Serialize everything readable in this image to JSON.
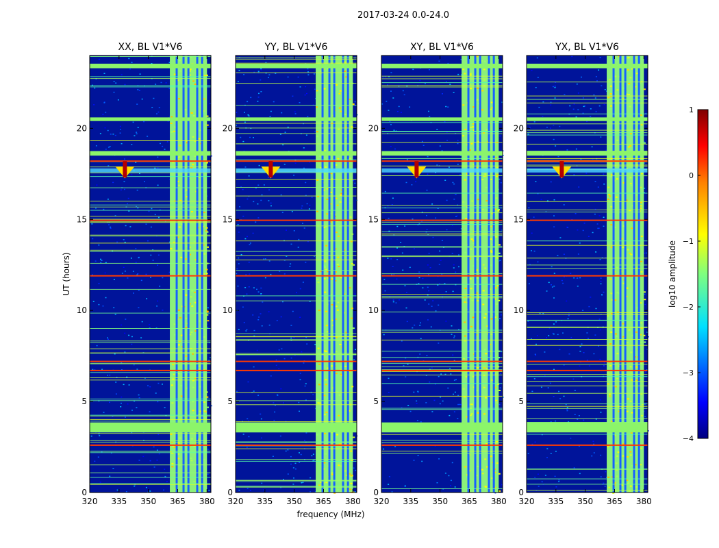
{
  "figure": {
    "suptitle": "2017-03-24 0.0-24.0"
  },
  "chart_data": {
    "type": "heatmap",
    "suptitle": "2017-03-24 0.0-24.0",
    "xlabel": "frequency (MHz)",
    "ylabel": "UT (hours)",
    "xlim": [
      320,
      382
    ],
    "ylim": [
      0,
      24
    ],
    "xticks": [
      "320",
      "335",
      "350",
      "365",
      "380"
    ],
    "yticks": [
      "0",
      "5",
      "10",
      "15",
      "20"
    ],
    "panels": [
      {
        "title": "XX, BL V1*V6",
        "polarization": "XX"
      },
      {
        "title": "YY, BL V1*V6",
        "polarization": "YY"
      },
      {
        "title": "XY, BL V1*V6",
        "polarization": "XY"
      },
      {
        "title": "YX, BL V1*V6",
        "polarization": "YX"
      }
    ],
    "colorbar": {
      "label": "log10 amplitude",
      "range": [
        -4,
        1
      ],
      "ticks": [
        "1",
        "0",
        "−1",
        "−2",
        "−3",
        "−4"
      ],
      "colormap": "jet"
    },
    "features": {
      "rfi_band_mhz": [
        361,
        380
      ],
      "rfi_channel_lines_mhz": [
        364.5,
        368,
        370.5,
        375,
        377.5
      ],
      "flagged_time_bands_hours": [
        [
          3.3,
          3.85
        ],
        [
          18.5,
          18.75
        ],
        [
          20.4,
          20.6
        ],
        [
          23.3,
          23.55
        ]
      ],
      "burst": {
        "freq_mhz": 338,
        "time_hours": [
          17.3,
          18.2
        ]
      },
      "horizontal_rfi_hours": [
        2.6,
        11.9,
        14.95,
        18.2,
        7.2,
        6.7
      ]
    }
  },
  "colors": {
    "background": "#00149a",
    "noise": "#1f4bff",
    "flagged": "#8cf56a",
    "rfi_hot": "#ff3a00",
    "burst": "#b40000"
  }
}
